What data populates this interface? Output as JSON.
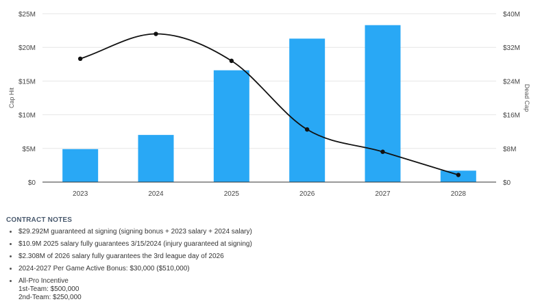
{
  "chart_data": {
    "type": "bar+line",
    "categories": [
      "2023",
      "2024",
      "2025",
      "2026",
      "2027",
      "2028"
    ],
    "series": [
      {
        "name": "Cap Hit",
        "type": "bar",
        "axis": "left",
        "color": "#29a8f5",
        "values": [
          4.9,
          7.0,
          16.6,
          21.3,
          23.3,
          1.7
        ]
      },
      {
        "name": "Dead Cap",
        "type": "line",
        "axis": "right",
        "color": "#111111",
        "values": [
          29.3,
          35.2,
          28.8,
          12.5,
          7.2,
          1.7
        ]
      }
    ],
    "ylabel": "Cap Hit",
    "y2label": "Dead Cap",
    "ylim": [
      0,
      25
    ],
    "y2lim": [
      0,
      40
    ],
    "yticks": [
      "$0",
      "$5M",
      "$10M",
      "$15M",
      "$20M",
      "$25M"
    ],
    "y2ticks": [
      "$0",
      "$8M",
      "$16M",
      "$24M",
      "$32M",
      "$40M"
    ],
    "grid": true
  },
  "notes": {
    "title": "CONTRACT NOTES",
    "items": [
      {
        "lines": [
          "$29.292M guaranteed at signing (signing bonus + 2023 salary + 2024 salary)"
        ]
      },
      {
        "lines": [
          "$10.9M 2025 salary fully guarantees 3/15/2024 (injury guaranteed at signing)"
        ]
      },
      {
        "lines": [
          "$2.308M of 2026 salary fully guarantees the 3rd league day of 2026"
        ]
      },
      {
        "lines": [
          "2024-2027 Per Game Active Bonus: $30,000 ($510,000)"
        ]
      },
      {
        "lines": [
          "All-Pro Incentive",
          "1st-Team: $500,000",
          "2nd-Team: $250,000"
        ]
      }
    ]
  }
}
